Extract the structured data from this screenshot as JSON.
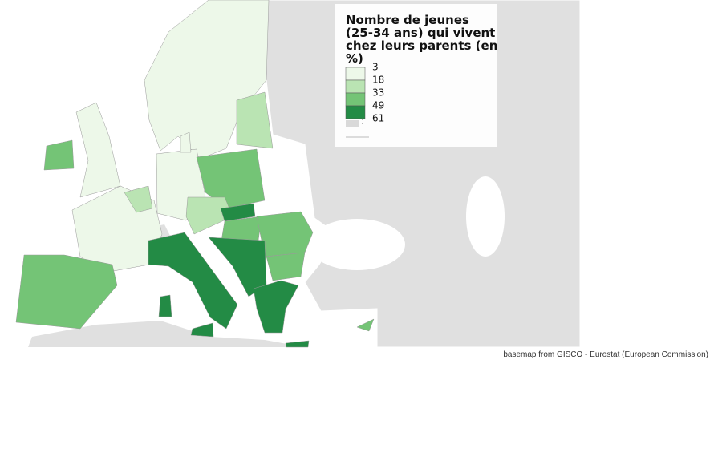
{
  "legend": {
    "title": [
      "Nombre de jeunes",
      "(25-34 ans) qui vivent",
      "chez leurs parents (en",
      "%)"
    ],
    "breaks": [
      3,
      18,
      33,
      49,
      61
    ],
    "colors": [
      "#edf8e9",
      "#bae4b3",
      "#74c476",
      "#238b45"
    ],
    "no_data": {
      "label": ":",
      "color": "#d9d9d9"
    }
  },
  "attribution": "basemap from GISCO - Eurostat (European Commission)"
}
